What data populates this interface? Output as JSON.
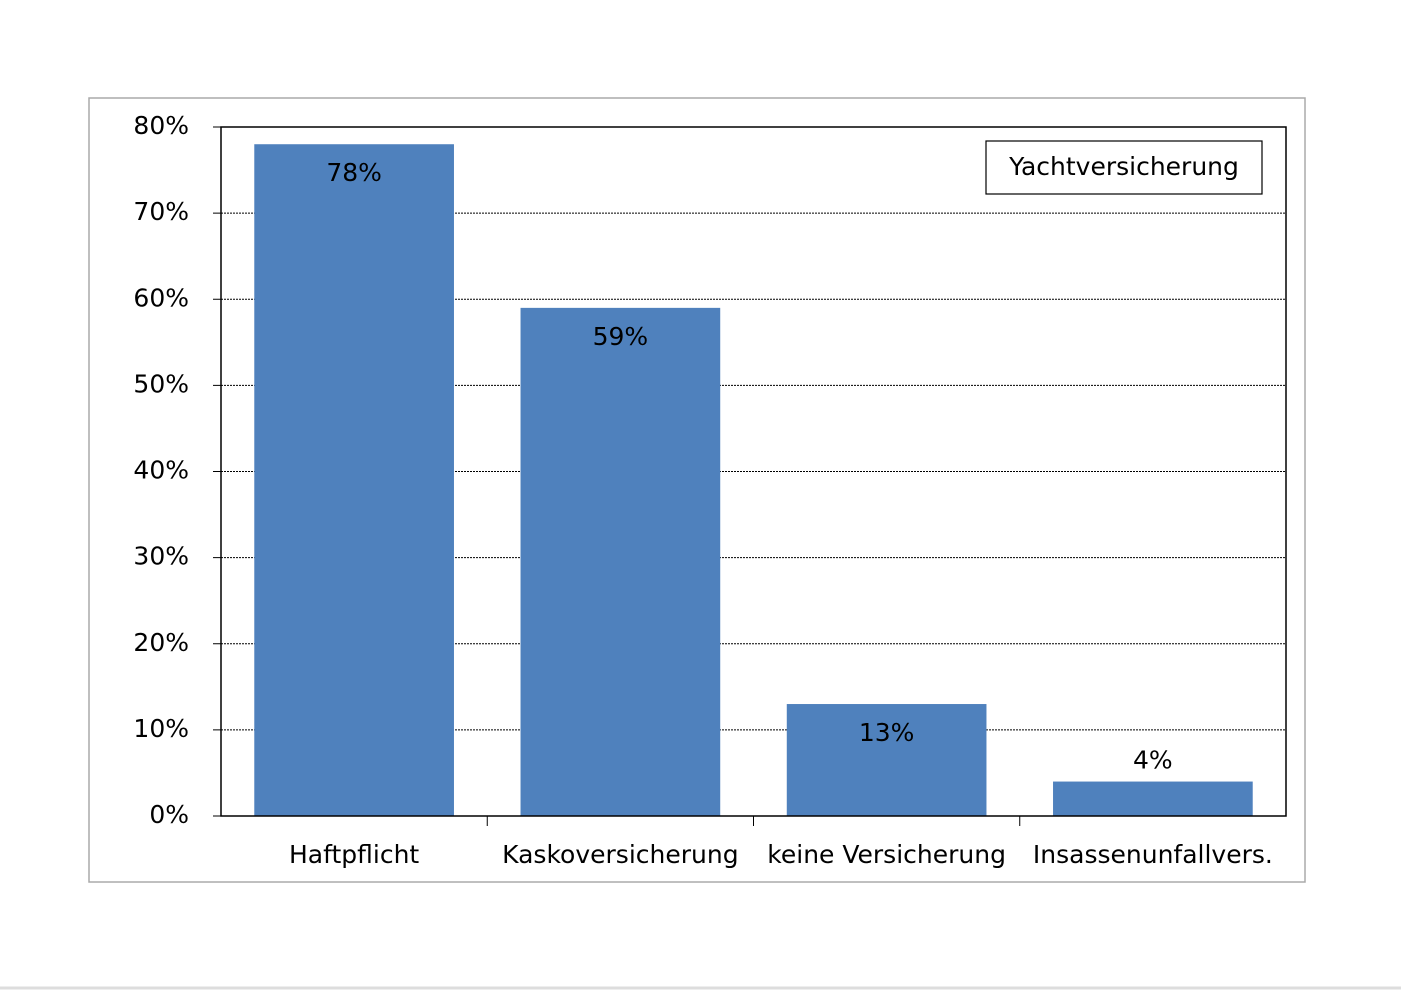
{
  "chart_data": {
    "type": "bar",
    "categories": [
      "Haftpflicht",
      "Kaskoversicherung",
      "keine Versicherung",
      "Insassenunfallvers."
    ],
    "series": [
      {
        "name": "Yachtversicherung",
        "color": "#4f81bd",
        "values": [
          78,
          59,
          13,
          4
        ],
        "value_labels": [
          "78%",
          "59%",
          "13%",
          "4%"
        ]
      }
    ],
    "ylim": [
      0,
      80
    ],
    "yticks": [
      {
        "value": 0,
        "label": "0%"
      },
      {
        "value": 10,
        "label": "10%"
      },
      {
        "value": 20,
        "label": "20%"
      },
      {
        "value": 30,
        "label": "30%"
      },
      {
        "value": 40,
        "label": "40%"
      },
      {
        "value": 50,
        "label": "50%"
      },
      {
        "value": 60,
        "label": "60%"
      },
      {
        "value": 70,
        "label": "70%"
      },
      {
        "value": 80,
        "label": "80%"
      }
    ],
    "grid": true,
    "legend": "upper right"
  }
}
